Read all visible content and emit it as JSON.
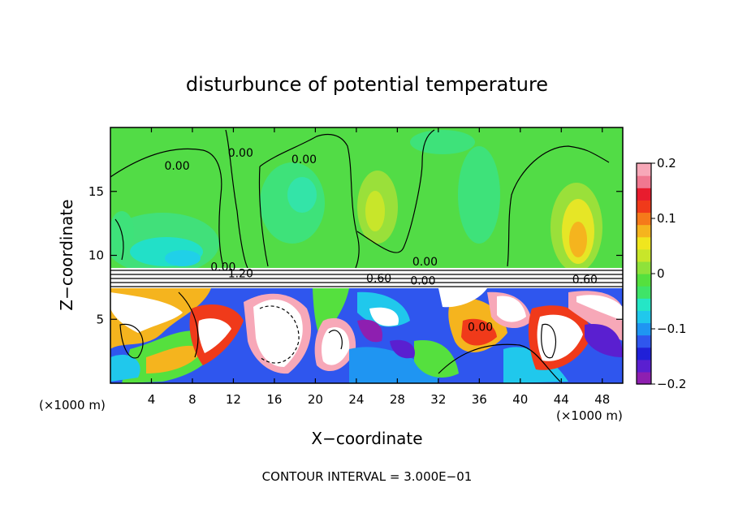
{
  "chart_data": {
    "type": "heatmap",
    "title": "disturbunce of potential temperature",
    "xlabel": "X−coordinate",
    "ylabel": "Z−coordinate",
    "x_unit": "(×1000 m)",
    "x_unit_right": "(×1000 m)",
    "xlim": [
      0,
      50
    ],
    "ylim": [
      0,
      20
    ],
    "x_ticks": [
      4,
      8,
      12,
      16,
      20,
      24,
      28,
      32,
      36,
      40,
      44,
      48
    ],
    "y_ticks": [
      5,
      10,
      15
    ],
    "footer": "CONTOUR INTERVAL = 3.000E−01",
    "colorbar": {
      "range": [
        -0.2,
        0.2
      ],
      "tick_values": [
        0.2,
        0.1,
        0,
        -0.1,
        -0.2
      ],
      "tick_labels": [
        "0.2",
        "0.1",
        "0",
        "−0.1",
        "−0.2"
      ],
      "colors": [
        "#8e1fb0",
        "#5a1fd0",
        "#2020d8",
        "#2f56ee",
        "#1f95f2",
        "#20c8ec",
        "#25e6c6",
        "#3fe468",
        "#55e03e",
        "#8fe23a",
        "#c8e62a",
        "#f0e61e",
        "#f5b41e",
        "#f57a1a",
        "#f03a1a",
        "#e81c2e",
        "#f07890",
        "#f7a8b8"
      ]
    },
    "contour_labels": [
      {
        "text": "0.00",
        "x": 6.5,
        "y": 16.7
      },
      {
        "text": "0.00",
        "x": 12.7,
        "y": 17.7
      },
      {
        "text": "0.00",
        "x": 18.9,
        "y": 17.2
      },
      {
        "text": "0.00",
        "x": 30.7,
        "y": 9.2
      },
      {
        "text": "0.60",
        "x": 26.2,
        "y": 7.9
      },
      {
        "text": "0.00",
        "x": 30.5,
        "y": 7.7
      },
      {
        "text": "0.60",
        "x": 46.3,
        "y": 7.8
      },
      {
        "text": "0.00",
        "x": 36.1,
        "y": 4.1
      },
      {
        "text": "0.00",
        "x": 11.0,
        "y": 8.8
      },
      {
        "text": "1.20",
        "x": 12.7,
        "y": 8.3
      }
    ]
  }
}
